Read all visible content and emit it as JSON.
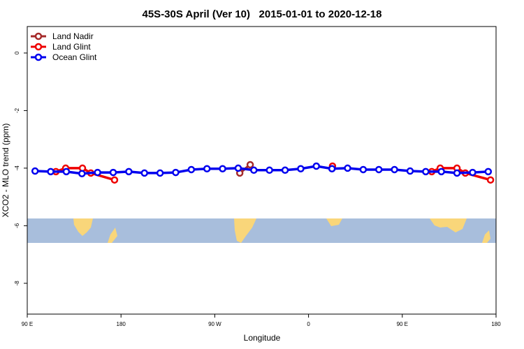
{
  "chart_data": {
    "type": "line",
    "title": "45S-30S April (Ver 10)   2015-01-01 to 2020-12-18",
    "x_label": "Longitude",
    "y_label": "XCO2 - MLO trend (ppm)",
    "xlim": [
      90,
      540
    ],
    "xticks": [
      {
        "value": 90,
        "label": "90 E"
      },
      180,
      {
        "value": 270,
        "label": "90 W"
      },
      {
        "value": 360,
        "label": "0"
      },
      {
        "value": 450,
        "label": "90 E"
      },
      {
        "value": 540,
        "label": "180"
      }
    ],
    "ylim": [
      -9.07,
      0.92
    ],
    "yticks": [
      0,
      -2,
      -4,
      -6,
      -8
    ],
    "legend": "top-left",
    "series": [
      {
        "name": "Land Nadir",
        "color": "#a52a2a",
        "x": [
          294,
          304
        ],
        "values": [
          -4.17,
          -3.88
        ]
      },
      {
        "name": "Land Glint",
        "color": "#ee0000",
        "x": [
          117.5,
          126.9,
          143,
          151,
          173.8,
          null,
          383,
          null,
          478.3,
          486.4,
          502.5,
          510.5,
          534.7
        ],
        "values": [
          -4.12,
          -4.0,
          -4.0,
          -4.17,
          -4.41,
          null,
          -3.93,
          null,
          -4.12,
          -4.0,
          -4.0,
          -4.17,
          -4.41
        ]
      },
      {
        "name": "Ocean Glint",
        "color": "#0000ee",
        "x": [
          97.5,
          112.5,
          127.5,
          142.5,
          157.5,
          172.5,
          187.5,
          202.5,
          217.5,
          232.5,
          247.5,
          262.5,
          277.5,
          292.5,
          307.5,
          322.5,
          337.5,
          352.5,
          367.5,
          382.5,
          397.5,
          412.5,
          427.5,
          442.5,
          457.5,
          472.5,
          487.5,
          502.5,
          517.5,
          532.5
        ],
        "values": [
          -4.1,
          -4.12,
          -4.12,
          -4.19,
          -4.15,
          -4.15,
          -4.12,
          -4.17,
          -4.17,
          -4.15,
          -4.05,
          -4.02,
          -4.02,
          -4.0,
          -4.07,
          -4.07,
          -4.07,
          -4.02,
          -3.93,
          -4.02,
          -4.0,
          -4.05,
          -4.05,
          -4.05,
          -4.1,
          -4.12,
          -4.12,
          -4.17,
          -4.15,
          -4.12
        ]
      }
    ]
  }
}
